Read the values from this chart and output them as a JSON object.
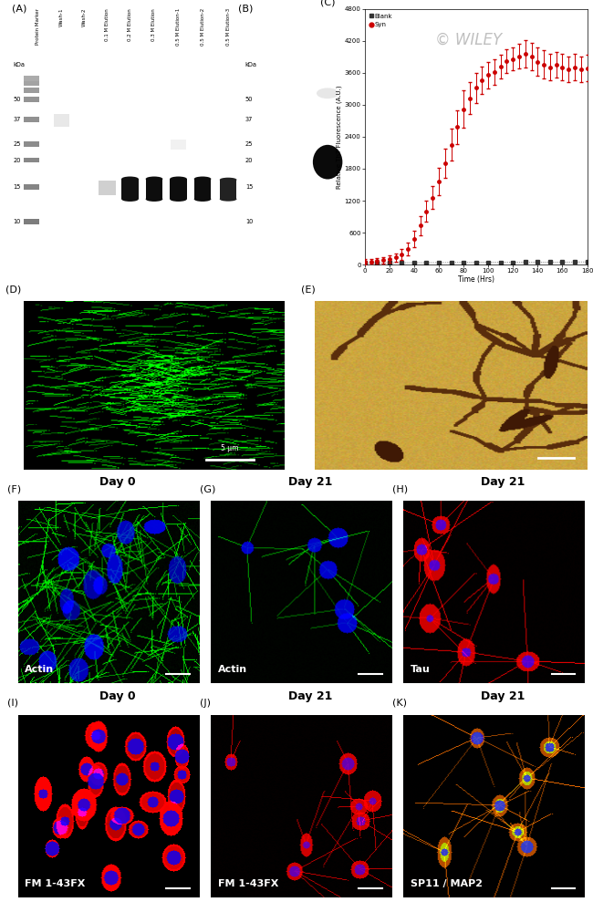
{
  "wiley_text": "© WILEY",
  "panel_labels": [
    "(A)",
    "(B)",
    "(C)",
    "(D)",
    "(E)",
    "(F)",
    "(G)",
    "(H)",
    "(I)",
    "(J)",
    "(K)"
  ],
  "gel_A": {
    "lane_labels": [
      "Protein Marker",
      "Wash-1",
      "Wash-2",
      "0.1 M Elution",
      "0.2 M Elution",
      "0.3 M Elution",
      "0.5 M Elution-1",
      "0.5 M Elution-2",
      "0.5 M Elution-3"
    ],
    "kda_left": [
      50,
      37,
      25,
      20,
      15,
      10
    ],
    "kda_right": [
      50,
      37,
      25,
      20,
      15,
      10
    ]
  },
  "graph_C": {
    "xlabel": "Time (Hrs)",
    "ylabel": "Relative ThT Fluorescence (A.U.)",
    "xlim": [
      0,
      180
    ],
    "ylim": [
      0,
      4800
    ],
    "yticks": [
      0,
      600,
      1200,
      1800,
      2400,
      3000,
      3600,
      4200,
      4800
    ],
    "xticks": [
      0,
      20,
      40,
      60,
      80,
      100,
      120,
      140,
      160,
      180
    ],
    "blank_color": "#333333",
    "syn_color": "#cc0000",
    "syn_x": [
      0,
      5,
      10,
      15,
      20,
      25,
      30,
      35,
      40,
      45,
      50,
      55,
      60,
      65,
      70,
      75,
      80,
      85,
      90,
      95,
      100,
      105,
      110,
      115,
      120,
      125,
      130,
      135,
      140,
      145,
      150,
      155,
      160,
      165,
      170,
      175,
      180
    ],
    "syn_y": [
      50,
      60,
      70,
      80,
      100,
      130,
      190,
      300,
      480,
      730,
      1000,
      1260,
      1560,
      1900,
      2250,
      2580,
      2920,
      3120,
      3320,
      3460,
      3560,
      3620,
      3720,
      3820,
      3860,
      3910,
      3960,
      3910,
      3810,
      3760,
      3710,
      3760,
      3710,
      3660,
      3710,
      3660,
      3690
    ],
    "syn_err": [
      50,
      50,
      50,
      60,
      70,
      80,
      100,
      120,
      150,
      180,
      200,
      220,
      250,
      280,
      300,
      320,
      350,
      300,
      280,
      260,
      250,
      240,
      230,
      220,
      210,
      230,
      250,
      260,
      270,
      260,
      250,
      240,
      250,
      240,
      250,
      240,
      250
    ],
    "blank_x": [
      0,
      10,
      20,
      30,
      40,
      50,
      60,
      70,
      80,
      90,
      100,
      110,
      120,
      130,
      140,
      150,
      160,
      170,
      180
    ],
    "blank_y": [
      30,
      32,
      33,
      34,
      35,
      36,
      37,
      38,
      39,
      40,
      41,
      42,
      43,
      44,
      45,
      46,
      47,
      48,
      50
    ],
    "blank_err": [
      8,
      8,
      8,
      8,
      8,
      8,
      8,
      8,
      8,
      8,
      8,
      8,
      8,
      8,
      8,
      8,
      8,
      8,
      8
    ]
  },
  "panel_D_scale": "5 μm",
  "panels_row3": [
    {
      "label": "(F)",
      "day": "Day 0",
      "stain": "Actin"
    },
    {
      "label": "(G)",
      "day": "Day 21",
      "stain": "Actin"
    },
    {
      "label": "(H)",
      "day": "Day 21",
      "stain": "Tau"
    }
  ],
  "panels_row4": [
    {
      "label": "(I)",
      "day": "Day 0",
      "stain": "FM 1-43FX"
    },
    {
      "label": "(J)",
      "day": "Day 21",
      "stain": "FM 1-43FX"
    },
    {
      "label": "(K)",
      "day": "Day 21",
      "stain": "SP11 / MAP2"
    }
  ]
}
